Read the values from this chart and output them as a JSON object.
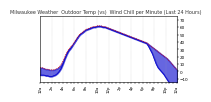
{
  "title": "Milwaukee Weather  Outdoor Temp (vs)  Wind Chill per Minute (Last 24 Hours)",
  "title_fontsize": 3.5,
  "title_color": "#333333",
  "bg_color": "#ffffff",
  "plot_bg_color": "#ffffff",
  "grid_color": "#aaaaaa",
  "yticks": [
    -10,
    0,
    10,
    20,
    30,
    40,
    50,
    60,
    70
  ],
  "ylim": [
    -15,
    75
  ],
  "xlim": [
    0,
    1439
  ],
  "temp_color": "#dd0000",
  "windchill_color": "#0000cc",
  "temp_data_x": [
    0,
    20,
    40,
    60,
    80,
    100,
    120,
    140,
    160,
    180,
    200,
    220,
    240,
    260,
    280,
    300,
    320,
    340,
    360,
    380,
    400,
    420,
    440,
    460,
    480,
    500,
    520,
    540,
    560,
    580,
    600,
    620,
    640,
    660,
    680,
    700,
    720,
    740,
    760,
    780,
    800,
    820,
    840,
    860,
    880,
    900,
    920,
    940,
    960,
    980,
    1000,
    1020,
    1040,
    1060,
    1080,
    1100,
    1120,
    1140,
    1160,
    1180,
    1200,
    1220,
    1240,
    1260,
    1280,
    1300,
    1320,
    1340,
    1360,
    1380,
    1400,
    1420,
    1439
  ],
  "temp_data_y": [
    5,
    5,
    4,
    3,
    3,
    2,
    2,
    2,
    3,
    4,
    6,
    9,
    14,
    20,
    26,
    30,
    33,
    36,
    40,
    44,
    48,
    51,
    53,
    55,
    57,
    58,
    59,
    60,
    61,
    61,
    62,
    62,
    62,
    61,
    61,
    60,
    59,
    58,
    57,
    56,
    55,
    54,
    53,
    52,
    51,
    50,
    49,
    48,
    47,
    46,
    45,
    44,
    43,
    42,
    41,
    40,
    39,
    37,
    35,
    33,
    31,
    29,
    27,
    25,
    23,
    21,
    19,
    17,
    14,
    11,
    8,
    5,
    2
  ],
  "wc_data_x": [
    0,
    20,
    40,
    60,
    80,
    100,
    120,
    140,
    160,
    180,
    200,
    220,
    240,
    260,
    280,
    300,
    320,
    340,
    360,
    380,
    400,
    420,
    440,
    460,
    480,
    500,
    520,
    540,
    560,
    580,
    600,
    620,
    640,
    660,
    680,
    700,
    720,
    740,
    760,
    780,
    800,
    820,
    840,
    860,
    880,
    900,
    920,
    940,
    960,
    980,
    1000,
    1020,
    1040,
    1060,
    1080,
    1100,
    1120,
    1140,
    1160,
    1180,
    1200,
    1220,
    1240,
    1260,
    1280,
    1300,
    1320,
    1340,
    1360,
    1380,
    1400,
    1420,
    1439
  ],
  "wc_data_y": [
    -5,
    -5,
    -5,
    -6,
    -6,
    -7,
    -7,
    -6,
    -5,
    -3,
    0,
    4,
    10,
    17,
    23,
    28,
    31,
    35,
    39,
    43,
    47,
    50,
    52,
    54,
    56,
    57,
    58,
    59,
    60,
    60,
    61,
    61,
    61,
    60,
    60,
    59,
    58,
    57,
    56,
    55,
    54,
    53,
    52,
    51,
    50,
    49,
    48,
    47,
    46,
    45,
    44,
    43,
    42,
    41,
    40,
    39,
    38,
    34,
    29,
    24,
    17,
    10,
    5,
    2,
    -1,
    -4,
    -8,
    -12,
    -16,
    -18,
    -20,
    -22,
    -24
  ],
  "xtick_labels": [
    "12a",
    "",
    "",
    "2a",
    "",
    "",
    "4a",
    "",
    "",
    "6a",
    "",
    "",
    "8a",
    "",
    "",
    "10a",
    "",
    "",
    "12p",
    "",
    "",
    "2p",
    "",
    "",
    "4p",
    "",
    "",
    "6p",
    "",
    "",
    "8p",
    "",
    "",
    "10p",
    "",
    "",
    "12a"
  ],
  "xtick_positions": [
    0,
    40,
    80,
    120,
    160,
    200,
    240,
    280,
    320,
    360,
    400,
    440,
    480,
    520,
    560,
    600,
    640,
    680,
    720,
    760,
    800,
    840,
    880,
    920,
    960,
    1000,
    1040,
    1080,
    1120,
    1160,
    1200,
    1240,
    1280,
    1320,
    1360,
    1400,
    1439
  ],
  "vgrid_positions": [
    0,
    120,
    240,
    360,
    480,
    600,
    720,
    840,
    960,
    1080,
    1200,
    1320,
    1439
  ],
  "ytick_fontsize": 3.0,
  "xtick_fontsize": 2.8,
  "line_width": 0.5
}
